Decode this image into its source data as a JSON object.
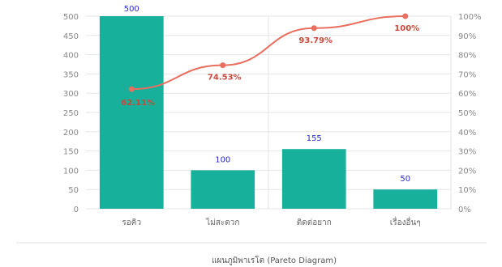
{
  "chart_data": {
    "type": "bar",
    "title": "",
    "caption": "แผนภูมิพาเรโต (Pareto Diagram)",
    "categories": [
      "รอคิว",
      "ไม่สะดวก",
      "ติดต่อยาก",
      "เรื่องอื่นๆ"
    ],
    "series": [
      {
        "type": "bar",
        "values": [
          500,
          100,
          155,
          50
        ],
        "value_labels": [
          "500",
          "100",
          "155",
          "50"
        ],
        "color": "#17b09b"
      },
      {
        "type": "line",
        "axis": "right",
        "values": [
          62.11,
          74.53,
          93.79,
          100
        ],
        "value_labels": [
          "62.11%",
          "74.53%",
          "93.79%",
          "100%"
        ],
        "color": "#e86f5f"
      }
    ],
    "ylim": [
      0,
      500
    ],
    "y_ticks": [
      "0",
      "50",
      "100",
      "150",
      "200",
      "250",
      "300",
      "350",
      "400",
      "450",
      "500"
    ],
    "y2lim": [
      0,
      100
    ],
    "y2_ticks": [
      "0%",
      "10%",
      "20%",
      "30%",
      "40%",
      "50%",
      "60%",
      "70%",
      "80%",
      "90%",
      "100%"
    ],
    "grid": true,
    "legend": "none"
  }
}
